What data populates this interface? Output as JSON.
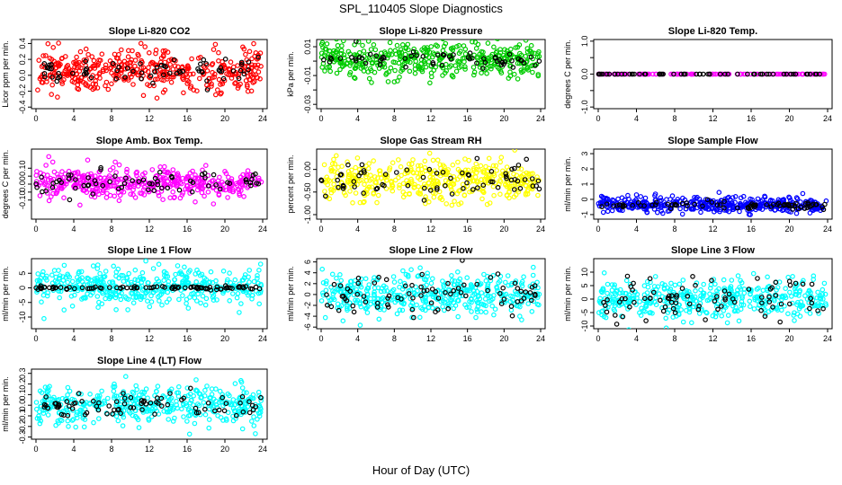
{
  "chart_data": {
    "title": "SPL_110405  Slope Diagnostics",
    "xlabel": "Hour of Day (UTC)",
    "panels": [
      {
        "type": "scatter",
        "title": "Slope Li-820 CO2",
        "ylabel": "Licor ppm per min.",
        "xlim": [
          0,
          24
        ],
        "x_ticks": [
          0,
          4,
          8,
          12,
          16,
          20,
          24
        ],
        "ylim": [
          -0.42,
          0.45
        ],
        "y_ticks": [
          -0.4,
          -0.2,
          0.0,
          0.2,
          0.4
        ],
        "y_tick_labels": [
          "-0.4",
          "-0.2",
          "0.0",
          "0.2",
          "0.4"
        ],
        "series": [
          {
            "name": "slope",
            "color": "#ff0000",
            "center": 0.05,
            "spread": 0.13,
            "n": 420
          },
          {
            "name": "selected",
            "color": "#000000",
            "center": 0.05,
            "spread": 0.08,
            "n": 70
          }
        ]
      },
      {
        "type": "scatter",
        "title": "Slope Li-820 Pressure",
        "ylabel": "kPa per min.",
        "xlim": [
          0,
          24
        ],
        "x_ticks": [
          0,
          4,
          8,
          12,
          16,
          20,
          24
        ],
        "ylim": [
          -0.033,
          0.015
        ],
        "y_ticks": [
          -0.03,
          -0.02,
          -0.01,
          0.0,
          0.01
        ],
        "y_tick_labels": [
          "-0.03",
          "",
          "-0.01",
          "",
          "0.01"
        ],
        "series": [
          {
            "name": "slope",
            "color": "#00cc00",
            "center": 0.001,
            "spread": 0.006,
            "n": 420
          },
          {
            "name": "selected",
            "color": "#000000",
            "center": 0.001,
            "spread": 0.003,
            "n": 60
          }
        ]
      },
      {
        "type": "scatter",
        "title": "Slope Li-820 Temp.",
        "ylabel": "degrees C per min.",
        "xlim": [
          0,
          24
        ],
        "x_ticks": [
          0,
          4,
          8,
          12,
          16,
          20,
          24
        ],
        "ylim": [
          -1.05,
          1.05
        ],
        "y_ticks": [
          -1.0,
          -0.5,
          0.0,
          0.5,
          1.0
        ],
        "y_tick_labels": [
          "-1.0",
          "",
          "0.0",
          "",
          "1.0"
        ],
        "series": [
          {
            "name": "slope",
            "color": "#ff00ff",
            "center": 0.0,
            "spread": 0.0,
            "n": 120
          },
          {
            "name": "selected",
            "color": "#000000",
            "center": 0.0,
            "spread": 0.0,
            "n": 60
          }
        ]
      },
      {
        "type": "scatter",
        "title": "Slope Amb. Box Temp.",
        "ylabel": "degrees C per min.",
        "xlim": [
          0,
          24
        ],
        "x_ticks": [
          0,
          4,
          8,
          12,
          16,
          20,
          24
        ],
        "ylim": [
          -0.22,
          0.22
        ],
        "y_ticks": [
          -0.1,
          -0.05,
          0.0,
          0.05,
          0.1
        ],
        "y_tick_labels": [
          "-0.10",
          "",
          "0.00",
          "",
          "0.10"
        ],
        "series": [
          {
            "name": "slope",
            "color": "#ff00ff",
            "center": 0.005,
            "spread": 0.05,
            "n": 420
          },
          {
            "name": "selected",
            "color": "#000000",
            "center": 0.005,
            "spread": 0.035,
            "n": 70
          }
        ]
      },
      {
        "type": "scatter",
        "title": "Slope Gas Stream RH",
        "ylabel": "percent per min.",
        "xlim": [
          0,
          24
        ],
        "x_ticks": [
          0,
          4,
          8,
          12,
          16,
          20,
          24
        ],
        "ylim": [
          -1.1,
          0.45
        ],
        "y_ticks": [
          -1.0,
          -0.5,
          0.0
        ],
        "y_tick_labels": [
          "-1.00",
          "-0.50",
          "0.00"
        ],
        "series": [
          {
            "name": "slope",
            "color": "#ffff00",
            "center": -0.25,
            "spread": 0.22,
            "n": 420
          },
          {
            "name": "selected",
            "color": "#000000",
            "center": -0.25,
            "spread": 0.18,
            "n": 70
          }
        ]
      },
      {
        "type": "scatter",
        "title": "Slope Sample Flow",
        "ylabel": "ml/min per min.",
        "xlim": [
          0,
          24
        ],
        "x_ticks": [
          0,
          4,
          8,
          12,
          16,
          20,
          24
        ],
        "ylim": [
          -1.3,
          3.3
        ],
        "y_ticks": [
          -1,
          0,
          1,
          2,
          3
        ],
        "y_tick_labels": [
          "-1",
          "0",
          "1",
          "2",
          "3"
        ],
        "series": [
          {
            "name": "slope",
            "color": "#0000ff",
            "center": -0.35,
            "spread": 0.25,
            "n": 420
          },
          {
            "name": "selected",
            "color": "#000000",
            "center": -0.4,
            "spread": 0.12,
            "n": 80
          }
        ]
      },
      {
        "type": "scatter",
        "title": "Slope Line 1 Flow",
        "ylabel": "ml/min per min.",
        "xlim": [
          0,
          24
        ],
        "x_ticks": [
          0,
          4,
          8,
          12,
          16,
          20,
          24
        ],
        "ylim": [
          -14,
          10
        ],
        "y_ticks": [
          -10,
          -5,
          0,
          5
        ],
        "y_tick_labels": [
          "-10",
          "-5",
          "0",
          "5"
        ],
        "series": [
          {
            "name": "slope",
            "color": "#00ffff",
            "center": 0.5,
            "spread": 3.2,
            "n": 420
          },
          {
            "name": "selected",
            "color": "#000000",
            "center": 0.0,
            "spread": 0.3,
            "n": 90
          }
        ]
      },
      {
        "type": "scatter",
        "title": "Slope Line 2 Flow",
        "ylabel": "ml/min per min.",
        "xlim": [
          0,
          24
        ],
        "x_ticks": [
          0,
          4,
          8,
          12,
          16,
          20,
          24
        ],
        "ylim": [
          -6.3,
          6.6
        ],
        "y_ticks": [
          -6,
          -4,
          -2,
          0,
          2,
          4,
          6
        ],
        "y_tick_labels": [
          "-6",
          "-4",
          "-2",
          "0",
          "2",
          "4",
          "6"
        ],
        "series": [
          {
            "name": "slope",
            "color": "#00ffff",
            "center": 0.0,
            "spread": 1.8,
            "n": 420
          },
          {
            "name": "selected",
            "color": "#000000",
            "center": 0.0,
            "spread": 2.0,
            "n": 80
          }
        ]
      },
      {
        "type": "scatter",
        "title": "Slope Line 3 Flow",
        "ylabel": "ml/min per min.",
        "xlim": [
          0,
          24
        ],
        "x_ticks": [
          0,
          4,
          8,
          12,
          16,
          20,
          24
        ],
        "ylim": [
          -11,
          15
        ],
        "y_ticks": [
          -10,
          -5,
          0,
          5,
          10
        ],
        "y_tick_labels": [
          "-10",
          "-5",
          "0",
          "5",
          "10"
        ],
        "series": [
          {
            "name": "slope",
            "color": "#00ffff",
            "center": 0.0,
            "spread": 3.5,
            "n": 420
          },
          {
            "name": "selected",
            "color": "#000000",
            "center": 0.0,
            "spread": 3.5,
            "n": 80
          }
        ]
      },
      {
        "type": "scatter",
        "title": "Slope Line 4 (LT) Flow",
        "ylabel": "ml/min per min.",
        "xlim": [
          0,
          24
        ],
        "x_ticks": [
          0,
          4,
          8,
          12,
          16,
          20,
          24
        ],
        "ylim": [
          -0.32,
          0.34
        ],
        "y_ticks": [
          -0.3,
          -0.2,
          -0.1,
          0.0,
          0.1,
          0.2,
          0.3
        ],
        "y_tick_labels": [
          "-0.3",
          "-0.2",
          "-0.1",
          "0.0",
          "0.1",
          "0.2",
          "0.3"
        ],
        "series": [
          {
            "name": "slope",
            "color": "#00ffff",
            "center": 0.0,
            "spread": 0.09,
            "n": 420
          },
          {
            "name": "selected",
            "color": "#000000",
            "center": 0.0,
            "spread": 0.07,
            "n": 80
          }
        ]
      }
    ]
  }
}
